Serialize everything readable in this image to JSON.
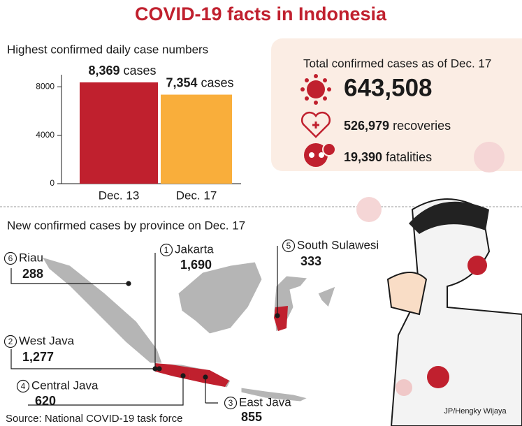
{
  "title": "COVID-19 facts in Indonesia",
  "chart_data": {
    "type": "bar",
    "title": "Highest confirmed daily case numbers",
    "categories": [
      "Dec. 13",
      "Dec. 17"
    ],
    "values": [
      8369,
      7354
    ],
    "value_labels": [
      "8,369",
      "7,354"
    ],
    "value_unit": "cases",
    "colors": [
      "#c0202e",
      "#f9ae3b"
    ],
    "ylim": [
      0,
      9000
    ],
    "yticks": [
      0,
      4000,
      8000
    ]
  },
  "summary": {
    "heading": "Total confirmed cases as of Dec. 17",
    "total": "643,508",
    "recoveries": {
      "number": "526,979",
      "label": "recoveries"
    },
    "fatalities": {
      "number": "19,390",
      "label": "fatalities"
    }
  },
  "provinces": {
    "heading": "New confirmed cases by province on Dec. 17",
    "items": [
      {
        "rank": "1",
        "name": "Jakarta",
        "value": "1,690"
      },
      {
        "rank": "2",
        "name": "West Java",
        "value": "1,277"
      },
      {
        "rank": "3",
        "name": "East Java",
        "value": "855"
      },
      {
        "rank": "4",
        "name": "Central Java",
        "value": "620"
      },
      {
        "rank": "5",
        "name": "South Sulawesi",
        "value": "333"
      },
      {
        "rank": "6",
        "name": "Riau",
        "value": "288"
      }
    ]
  },
  "source": "Source: National COVID-19 task force",
  "credit": "JP/Hengky Wijaya"
}
